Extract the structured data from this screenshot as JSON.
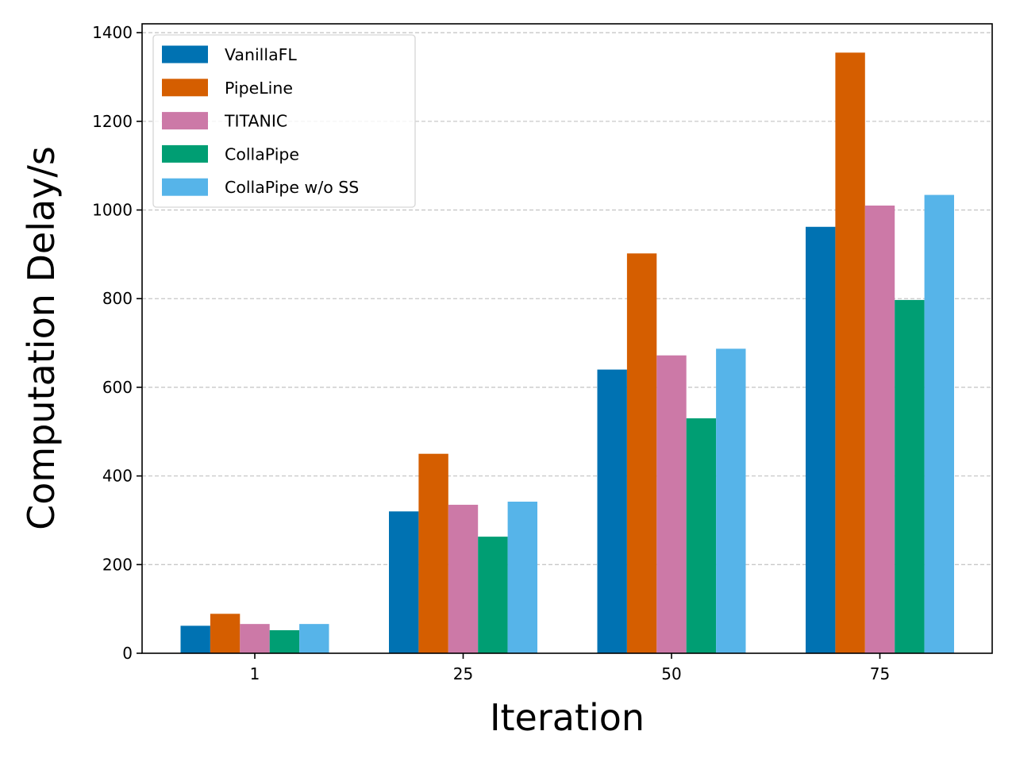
{
  "chart_data": {
    "type": "bar",
    "title": "",
    "xlabel": "Iteration",
    "ylabel": "Computation Delay/s",
    "categories": [
      "1",
      "25",
      "50",
      "75"
    ],
    "ylim": [
      0,
      1420
    ],
    "yticks": [
      0,
      200,
      400,
      600,
      800,
      1000,
      1200,
      1400
    ],
    "grid": "y-dashed",
    "legend_position": "top-left",
    "series": [
      {
        "name": "VanillaFL",
        "color": "#0072b2",
        "values": [
          62,
          320,
          640,
          962
        ]
      },
      {
        "name": "PipeLine",
        "color": "#d55e00",
        "values": [
          89,
          450,
          902,
          1355
        ]
      },
      {
        "name": "TITANIC",
        "color": "#cc79a7",
        "values": [
          66,
          335,
          672,
          1010
        ]
      },
      {
        "name": "CollaPipe",
        "color": "#009e73",
        "values": [
          52,
          263,
          530,
          797
        ]
      },
      {
        "name": "CollaPipe w/o SS",
        "color": "#56b4e9",
        "values": [
          66,
          342,
          687,
          1034
        ]
      }
    ]
  }
}
